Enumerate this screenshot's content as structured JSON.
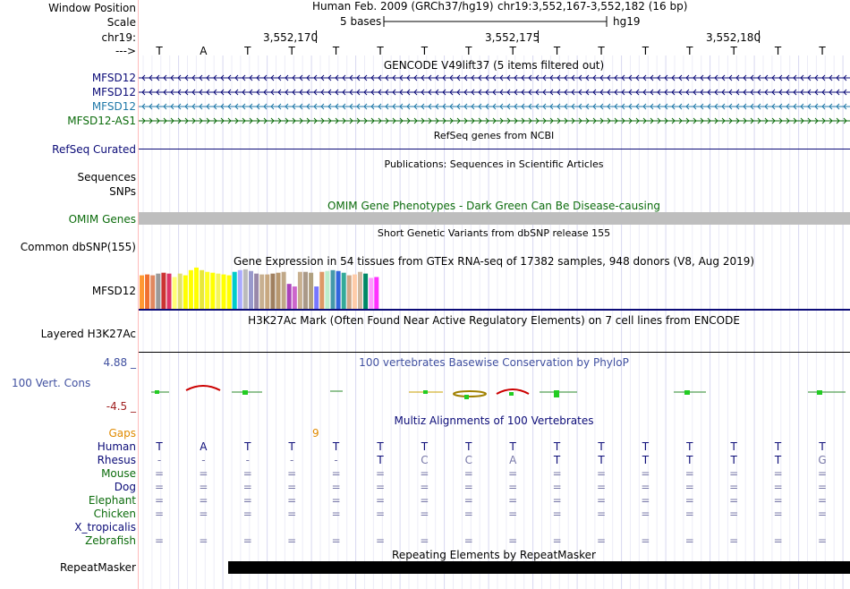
{
  "header": {
    "window_position_label": "Window Position",
    "scale_label": "Scale",
    "chr_label": "chr19:",
    "strand_label": "--->",
    "assembly_title": "Human Feb. 2009 (GRCh37/hg19)",
    "region": "chr19:3,552,167-3,552,182 (16 bp)",
    "scale_text": "5 bases",
    "scale_db": "hg19",
    "coords": [
      "3,552,170",
      "3,552,175",
      "3,552,180"
    ]
  },
  "sequence": [
    "T",
    "A",
    "T",
    "T",
    "T",
    "T",
    "T",
    "T",
    "T",
    "T",
    "T",
    "T",
    "T",
    "T",
    "T",
    "T"
  ],
  "gencode": {
    "title": "GENCODE V49lift37 (5 items filtered out)",
    "tracks": [
      {
        "label": "MFSD12",
        "color": "#0c0c78",
        "dir": "left"
      },
      {
        "label": "MFSD12",
        "color": "#0c0c78",
        "dir": "left"
      },
      {
        "label": "MFSD12",
        "color": "#1f78a8",
        "dir": "left"
      },
      {
        "label": "MFSD12-AS1",
        "color": "#0c6c0c",
        "dir": "right"
      }
    ]
  },
  "refseq": {
    "title": "RefSeq genes from NCBI",
    "label": "RefSeq Curated"
  },
  "publications": {
    "title": "Publications: Sequences in Scientific Articles",
    "labels": [
      "Sequences",
      "SNPs"
    ]
  },
  "omim": {
    "title": "OMIM Gene Phenotypes - Dark Green Can Be Disease-causing",
    "label": "OMIM Genes"
  },
  "dbsnp": {
    "title": "Short Genetic Variants from dbSNP release 155",
    "label": "Common dbSNP(155)"
  },
  "gtex": {
    "title": "Gene Expression in 54 tissues from GTEx RNA-seq of 17382 samples, 948 donors (V8, Aug 2019)",
    "label": "MFSD12",
    "values": [
      0.78,
      0.8,
      0.78,
      0.82,
      0.84,
      0.82,
      0.74,
      0.82,
      0.78,
      0.9,
      0.96,
      0.9,
      0.86,
      0.84,
      0.82,
      0.8,
      0.78,
      0.86,
      0.9,
      0.92,
      0.88,
      0.82,
      0.8,
      0.8,
      0.82,
      0.84,
      0.86,
      0.58,
      0.52,
      0.86,
      0.86,
      0.84,
      0.52,
      0.86,
      0.88,
      0.9,
      0.88,
      0.84,
      0.78,
      0.8,
      0.86,
      0.82,
      0.72,
      0.74
    ],
    "colors": [
      "#ff9933",
      "#f07030",
      "#e08860",
      "#9a9a9a",
      "#cc3333",
      "#dd3366",
      "#ffff77",
      "#e0e070",
      "#ffff00",
      "#ffff00",
      "#ffff00",
      "#e8e83a",
      "#ffff22",
      "#ffff00",
      "#f5f55a",
      "#ffff00",
      "#ffff00",
      "#00cccc",
      "#aaaaff",
      "#bbbbbb",
      "#9999cc",
      "#9988aa",
      "#c8b090",
      "#c8a880",
      "#a08060",
      "#b89870",
      "#c0a888",
      "#aa44bb",
      "#cc66cc",
      "#c8b090",
      "#aa9988",
      "#b0a080",
      "#7777ff",
      "#dd9966",
      "#bbeecc",
      "#4499aa",
      "#3366dd",
      "#33aa99",
      "#d0a888",
      "#ffccaa",
      "#d0b8a0",
      "#008866",
      "#ff99ff",
      "#ff33ff"
    ]
  },
  "h3k27ac": {
    "title": "H3K27Ac Mark (Often Found Near Active Regulatory Elements) on 7 cell lines from ENCODE",
    "label": "Layered H3K27Ac"
  },
  "conservation": {
    "title": "100 vertebrates Basewise Conservation by PhyloP",
    "label": "100 Vert. Cons",
    "max_label": "4.88 _",
    "min_label": "-4.5 _"
  },
  "multiz": {
    "title": "Multiz Alignments of 100 Vertebrates",
    "gaps_label": "Gaps",
    "gap_count": "9",
    "species": [
      {
        "name": "Human",
        "color": "#0c0c78",
        "bases": [
          "T",
          "A",
          "T",
          "T",
          "T",
          "T",
          "T",
          "T",
          "T",
          "T",
          "T",
          "T",
          "T",
          "T",
          "T",
          "T"
        ]
      },
      {
        "name": "Rhesus",
        "color": "#0c0c78",
        "bases": [
          "-",
          "-",
          "-",
          "-",
          "-",
          "T",
          "C",
          "C",
          "A",
          "T",
          "T",
          "T",
          "T",
          "T",
          "T",
          "G"
        ]
      },
      {
        "name": "Mouse",
        "color": "#0c6c0c",
        "bases": [
          "=",
          "=",
          "=",
          "=",
          "=",
          "=",
          "=",
          "=",
          "=",
          "=",
          "=",
          "=",
          "=",
          "=",
          "=",
          "="
        ]
      },
      {
        "name": "Dog",
        "color": "#0c0c78",
        "bases": [
          "=",
          "=",
          "=",
          "=",
          "=",
          "=",
          "=",
          "=",
          "=",
          "=",
          "=",
          "=",
          "=",
          "=",
          "=",
          "="
        ]
      },
      {
        "name": "Elephant",
        "color": "#0c6c0c",
        "bases": [
          "=",
          "=",
          "=",
          "=",
          "=",
          "=",
          "=",
          "=",
          "=",
          "=",
          "=",
          "=",
          "=",
          "=",
          "=",
          "="
        ]
      },
      {
        "name": "Chicken",
        "color": "#0c6c0c",
        "bases": [
          "=",
          "=",
          "=",
          "=",
          "=",
          "=",
          "=",
          "=",
          "=",
          "=",
          "=",
          "=",
          "=",
          "=",
          "=",
          "="
        ]
      },
      {
        "name": "X_tropicalis",
        "color": "#0c0c78",
        "bases": [
          "",
          "",
          "",
          "",
          "",
          "",
          "",
          "",
          "",
          "",
          "",
          "",
          "",
          "",
          "",
          ""
        ]
      },
      {
        "name": "Zebrafish",
        "color": "#0c6c0c",
        "bases": [
          "=",
          "=",
          "=",
          "=",
          "=",
          "=",
          "=",
          "=",
          "=",
          "=",
          "=",
          "=",
          "=",
          "=",
          "=",
          "="
        ]
      }
    ]
  },
  "repeatmasker": {
    "title": "Repeating Elements by RepeatMasker",
    "label": "RepeatMasker"
  }
}
